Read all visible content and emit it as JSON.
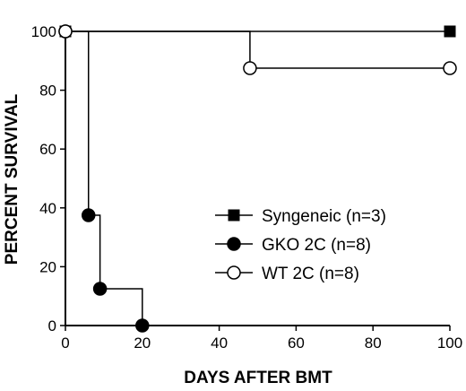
{
  "chart_data": {
    "type": "line",
    "step": true,
    "title": "",
    "xlabel": "DAYS AFTER BMT",
    "ylabel": "PERCENT SURVIVAL",
    "xlim": [
      0,
      100
    ],
    "ylim": [
      0,
      100
    ],
    "xticks": [
      0,
      20,
      40,
      60,
      80,
      100
    ],
    "yticks": [
      0,
      20,
      40,
      60,
      80,
      100
    ],
    "grid": false,
    "legend_position": "center-right",
    "series": [
      {
        "name": "Syngeneic (n=3)",
        "marker": "filled-square",
        "color": "#000000",
        "points": [
          [
            0,
            100
          ],
          [
            100,
            100
          ]
        ]
      },
      {
        "name": "GKO 2C (n=8)",
        "marker": "filled-circle",
        "color": "#000000",
        "points": [
          [
            0,
            100
          ],
          [
            6,
            37.5
          ],
          [
            9,
            12.5
          ],
          [
            20,
            0
          ]
        ]
      },
      {
        "name": "WT 2C (n=8)",
        "marker": "open-circle",
        "color": "#000000",
        "points": [
          [
            0,
            100
          ],
          [
            48,
            87.5
          ],
          [
            100,
            87.5
          ]
        ]
      }
    ]
  }
}
